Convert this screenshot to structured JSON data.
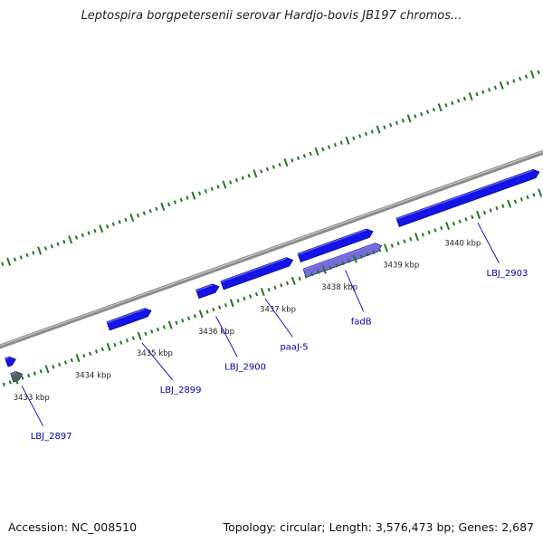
{
  "header": {
    "title": "Leptospira borgpetersenii serovar Hardjo-bovis JB197 chromos..."
  },
  "footer": {
    "accession": "Accession: NC_008510",
    "summary": "Topology: circular; Length: 3,576,473 bp; Genes: 2,687"
  },
  "colors": {
    "backbone": "#8c8c8c",
    "gene_fill": "#1414e6",
    "gene_highlight": "#7a6ad8",
    "pseudo_gene": "#606060",
    "tick": "#1e7a1e",
    "label_line": "#0000cc"
  },
  "scale": {
    "unit": "kbp",
    "ticks": [
      {
        "kbp": 3433,
        "label": "3433 kbp"
      },
      {
        "kbp": 3434,
        "label": "3434 kbp"
      },
      {
        "kbp": 3435,
        "label": "3435 kbp"
      },
      {
        "kbp": 3436,
        "label": "3436 kbp"
      },
      {
        "kbp": 3437,
        "label": "3437 kbp"
      },
      {
        "kbp": 3438,
        "label": "3438 kbp"
      },
      {
        "kbp": 3439,
        "label": "3439 kbp"
      },
      {
        "kbp": 3440,
        "label": "3440 kbp"
      }
    ]
  },
  "genes": [
    {
      "start": 3432.95,
      "end": 3433.1,
      "track": "inner1",
      "type": "gene"
    },
    {
      "start": 3432.95,
      "end": 3433.12,
      "track": "inner2",
      "type": "pseudo"
    },
    {
      "start": 3434.6,
      "end": 3435.3,
      "track": "inner1",
      "type": "gene"
    },
    {
      "start": 3436.05,
      "end": 3436.4,
      "track": "inner1",
      "type": "gene"
    },
    {
      "start": 3436.45,
      "end": 3437.6,
      "track": "inner1",
      "type": "gene"
    },
    {
      "start": 3437.7,
      "end": 3438.9,
      "track": "inner1",
      "type": "gene"
    },
    {
      "start": 3437.7,
      "end": 3438.95,
      "track": "inner2",
      "type": "highlight"
    },
    {
      "start": 3439.3,
      "end": 3441.6,
      "track": "inner1",
      "type": "gene"
    }
  ],
  "gene_labels": [
    {
      "text": "LBJ_2897",
      "anchor": 3433.05,
      "label_kbp": 3433.15
    },
    {
      "text": "LBJ_2899",
      "anchor": 3435.0,
      "label_kbp": 3435.25
    },
    {
      "text": "LBJ_2900",
      "anchor": 3436.2,
      "label_kbp": 3436.3
    },
    {
      "text": "paaJ-5",
      "anchor": 3437.0,
      "label_kbp": 3437.2
    },
    {
      "text": "fadB",
      "anchor": 3438.3,
      "label_kbp": 3438.35
    },
    {
      "text": "LBJ_2903",
      "anchor": 3440.45,
      "label_kbp": 3440.55
    }
  ]
}
